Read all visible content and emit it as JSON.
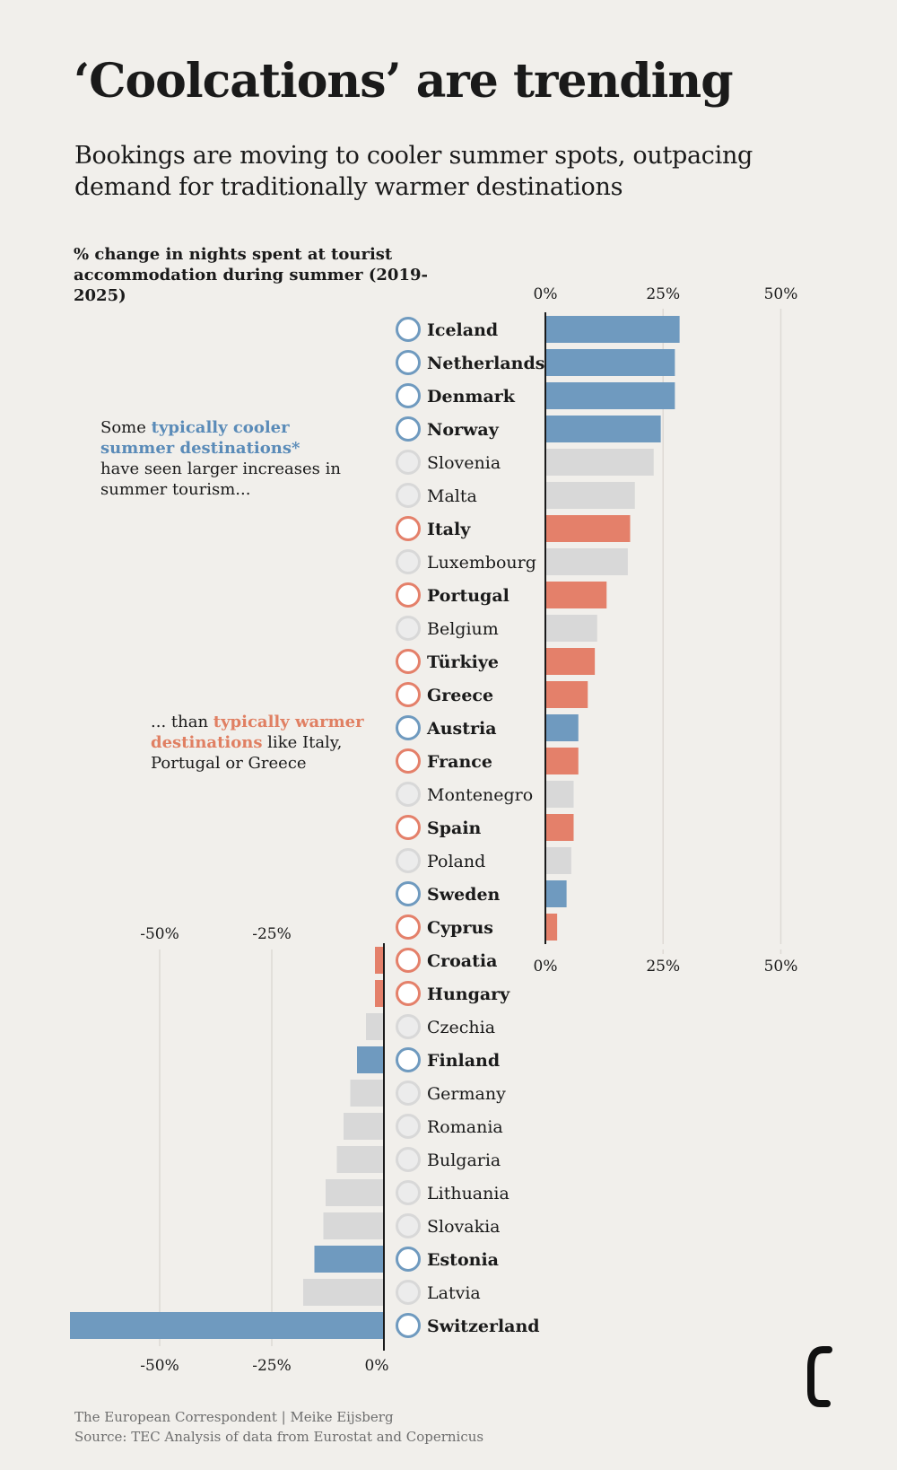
{
  "header": {
    "title": "‘Coolcations’ are trending",
    "subtitle": "Bookings are moving to cooler summer spots, outpacing demand for traditionally warmer destinations"
  },
  "chart_data": {
    "type": "bar",
    "orientation": "horizontal",
    "measure_label": "% change in nights spent at tourist accommodation during summer (2019-2025)",
    "x_ticks_top": [
      "0%",
      "25%",
      "50%"
    ],
    "x_ticks_negative": [
      "-50%",
      "-25%",
      "0%"
    ],
    "xlim": [
      -70,
      55
    ],
    "grid": true,
    "categories": [
      "Iceland",
      "Netherlands",
      "Denmark",
      "Norway",
      "Slovenia",
      "Malta",
      "Italy",
      "Luxembourg",
      "Portugal",
      "Belgium",
      "Türkiye",
      "Greece",
      "Austria",
      "France",
      "Montenegro",
      "Spain",
      "Poland",
      "Sweden",
      "Cyprus",
      "Croatia",
      "Hungary",
      "Czechia",
      "Finland",
      "Germany",
      "Romania",
      "Bulgaria",
      "Lithuania",
      "Slovakia",
      "Estonia",
      "Latvia",
      "Switzerland"
    ],
    "values": [
      28.5,
      27.5,
      27.5,
      24.5,
      23,
      19,
      18,
      17.5,
      13,
      11,
      10.5,
      9,
      7,
      7,
      6,
      6,
      5.5,
      4.5,
      2.5,
      -2,
      -2,
      -4,
      -6,
      -7.5,
      -9,
      -10.5,
      -13,
      -13.5,
      -15.5,
      -18,
      -70
    ],
    "group": [
      "cool",
      "cool",
      "cool",
      "cool",
      "other",
      "other",
      "warm",
      "other",
      "warm",
      "other",
      "warm",
      "warm",
      "cool",
      "warm",
      "other",
      "warm",
      "other",
      "cool",
      "warm",
      "warm",
      "warm",
      "other",
      "cool",
      "other",
      "other",
      "other",
      "other",
      "other",
      "cool",
      "other",
      "cool"
    ],
    "colors": {
      "cool": "#6f9abf",
      "warm": "#e4806a",
      "other": "#d8d8d8",
      "grid": "#dedad5",
      "axis": "#1a1a1a"
    }
  },
  "annotations": {
    "a1_pre": "Some ",
    "a1_highlight": "typically cooler summer destinations*",
    "a1_post": " have seen larger increases in summer tourism...",
    "a2_pre": "... than ",
    "a2_highlight": "typically warmer destinations",
    "a2_post": " like Italy, Portugal or Greece"
  },
  "footer": {
    "credit": "The European Correspondent | Meike Eijsberg",
    "source": "Source: TEC Analysis of data from Eurostat and Copernicus"
  },
  "logo": {
    "name": "european-correspondent-logo"
  }
}
